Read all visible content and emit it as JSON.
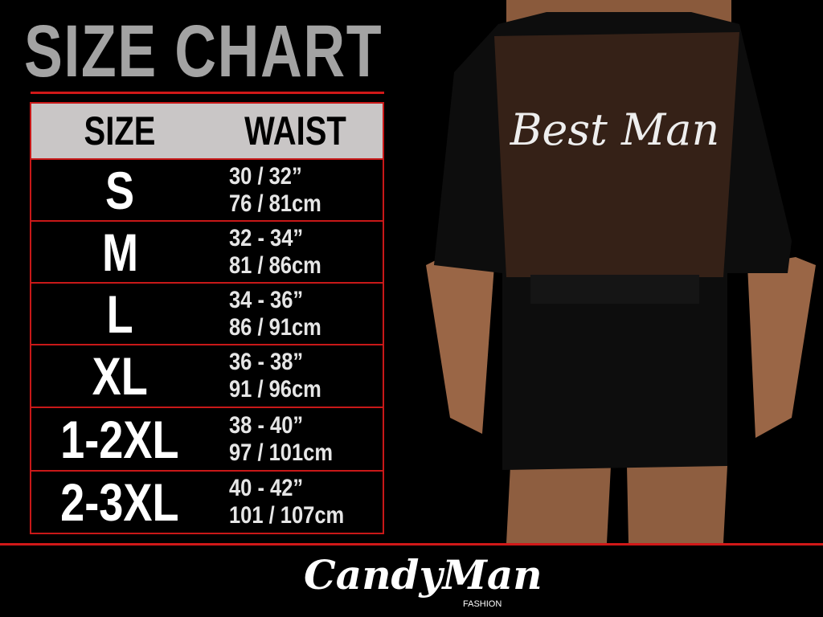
{
  "header": {
    "title": "SIZE CHART"
  },
  "table": {
    "columns": [
      "SIZE",
      "WAIST"
    ],
    "rows": [
      {
        "size": "S",
        "inches": "30 / 32”",
        "cm": "76 / 81cm"
      },
      {
        "size": "M",
        "inches": "32 - 34”",
        "cm": "81 / 86cm"
      },
      {
        "size": "L",
        "inches": "34 - 36”",
        "cm": "86 / 91cm"
      },
      {
        "size": "XL",
        "inches": "36 - 38”",
        "cm": "91 / 96cm"
      },
      {
        "size": "1-2XL",
        "inches": "38 - 40”",
        "cm": "97 / 101cm"
      },
      {
        "size": "2-3XL",
        "inches": "40 - 42”",
        "cm": "101 / 107cm"
      }
    ]
  },
  "product_image": {
    "print_text": "Best Man"
  },
  "brand": {
    "name": "CandyMan",
    "sub": "FASHION"
  },
  "colors": {
    "accent": "#d01818",
    "title": "#a3a3a3",
    "header_bg": "#c9c6c6",
    "background": "#000000"
  }
}
